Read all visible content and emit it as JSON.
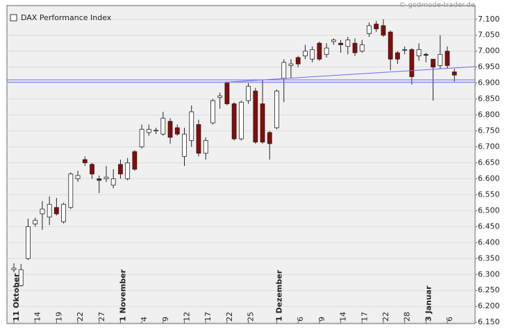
{
  "chart_data": {
    "type": "candlestick",
    "title": "DAX Performance Index",
    "watermark": "© godmode-trader.de",
    "categories": [
      "11 Oktober",
      null,
      null,
      "14",
      null,
      null,
      "19",
      null,
      null,
      "22",
      null,
      null,
      "27",
      null,
      null,
      "1 November",
      null,
      null,
      "4",
      null,
      null,
      "9",
      null,
      null,
      "12",
      null,
      null,
      "17",
      null,
      null,
      "22",
      null,
      null,
      "25",
      null,
      null,
      null,
      "1 Dezember",
      null,
      null,
      "6",
      null,
      null,
      "9",
      null,
      null,
      "14",
      null,
      null,
      "17",
      null,
      null,
      "22",
      null,
      null,
      "28",
      null,
      null,
      "3 Januar",
      null,
      null,
      "6",
      null
    ],
    "open": [
      6315,
      6265,
      6350,
      6458,
      6490,
      6480,
      6510,
      6465,
      6510,
      6600,
      6660,
      6645,
      6600,
      6600,
      6580,
      6645,
      6600,
      6685,
      6700,
      6745,
      6750,
      6740,
      6780,
      6760,
      6670,
      6720,
      6770,
      6680,
      6775,
      6855,
      6900,
      6835,
      6725,
      6845,
      6875,
      6835,
      6745,
      6760,
      6915,
      6955,
      6980,
      6985,
      6975,
      7025,
      6990,
      7030,
      7025,
      7015,
      7025,
      7000,
      7055,
      7085,
      7080,
      7060,
      6995,
      7003,
      7005,
      6985,
      6990,
      6975,
      6955,
      7000,
      6935
    ],
    "high": [
      6335,
      6333,
      6475,
      6478,
      6530,
      6545,
      6540,
      6525,
      6620,
      6625,
      6670,
      6650,
      6610,
      6640,
      6630,
      6660,
      6665,
      6690,
      6770,
      6770,
      6760,
      6810,
      6790,
      6770,
      6760,
      6830,
      6785,
      6730,
      6850,
      6870,
      6905,
      6840,
      6845,
      6900,
      6885,
      6910,
      6750,
      6880,
      6975,
      6975,
      6985,
      7020,
      7015,
      7030,
      7025,
      7040,
      7035,
      7045,
      7040,
      7035,
      7090,
      7095,
      7100,
      7065,
      7000,
      7015,
      7010,
      7025,
      6995,
      6975,
      7050,
      7015,
      6945
    ],
    "low": [
      6307,
      6262,
      6345,
      6450,
      6440,
      6455,
      6485,
      6460,
      6505,
      6590,
      6640,
      6600,
      6555,
      6590,
      6570,
      6600,
      6595,
      6625,
      6695,
      6735,
      6740,
      6735,
      6710,
      6735,
      6640,
      6700,
      6670,
      6660,
      6770,
      6820,
      6830,
      6720,
      6720,
      6835,
      6710,
      6710,
      6660,
      6755,
      6840,
      6915,
      6950,
      6975,
      6965,
      6970,
      6980,
      7020,
      6995,
      6990,
      6985,
      6995,
      7045,
      7060,
      7045,
      6940,
      6960,
      6990,
      6895,
      6970,
      6965,
      6845,
      6945,
      6945,
      6905
    ],
    "close": [
      6320,
      6315,
      6450,
      6470,
      6505,
      6520,
      6490,
      6520,
      6615,
      6610,
      6650,
      6615,
      6595,
      6605,
      6600,
      6615,
      6650,
      6630,
      6755,
      6755,
      6752,
      6790,
      6730,
      6740,
      6740,
      6810,
      6680,
      6720,
      6845,
      6860,
      6835,
      6725,
      6840,
      6890,
      6715,
      6715,
      6710,
      6875,
      6965,
      6960,
      6960,
      7000,
      7005,
      6975,
      7010,
      7035,
      7020,
      7035,
      6995,
      7020,
      7080,
      7070,
      7050,
      6975,
      6975,
      7005,
      6920,
      7005,
      6987,
      6950,
      6990,
      6955,
      6925
    ],
    "up_color": "#ffffff",
    "down_color": "#8b0a0a",
    "line_color": "#6b6bf0",
    "hlines": [
      6910,
      6903
    ],
    "trendline": {
      "x": [
        30,
        61
      ],
      "y": [
        6903,
        6946
      ]
    },
    "ylim": [
      6146,
      7143
    ],
    "yticks": [
      {
        "value": 6150,
        "label": "6.150"
      },
      {
        "value": 6200,
        "label": "6.200"
      },
      {
        "value": 6250,
        "label": "6.250"
      },
      {
        "value": 6300,
        "label": "6.300"
      },
      {
        "value": 6350,
        "label": "6.350"
      },
      {
        "value": 6400,
        "label": "6.400"
      },
      {
        "value": 6450,
        "label": "6.450"
      },
      {
        "value": 6500,
        "label": "6.500"
      },
      {
        "value": 6550,
        "label": "6.550"
      },
      {
        "value": 6600,
        "label": "6.600"
      },
      {
        "value": 6650,
        "label": "6.650"
      },
      {
        "value": 6700,
        "label": "6.700"
      },
      {
        "value": 6750,
        "label": "6.750"
      },
      {
        "value": 6800,
        "label": "6.800"
      },
      {
        "value": 6850,
        "label": "6.850"
      },
      {
        "value": 6900,
        "label": "6.900"
      },
      {
        "value": 6950,
        "label": "6.950"
      },
      {
        "value": 7000,
        "label": "7.000"
      },
      {
        "value": 7050,
        "label": "7.050"
      },
      {
        "value": 7100,
        "label": "7.100"
      }
    ],
    "grid": true
  }
}
